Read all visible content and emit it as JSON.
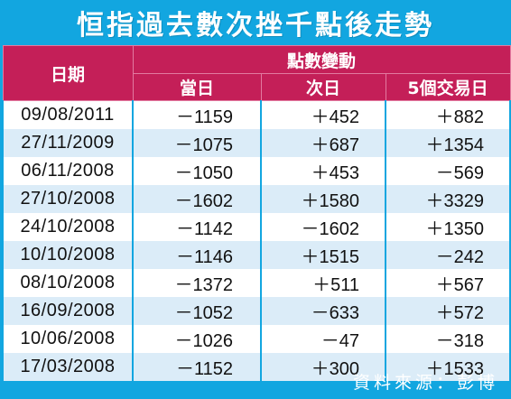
{
  "title": "恒指過去數次挫千點後走勢",
  "header": {
    "date_label": "日期",
    "group_label": "點數變動",
    "columns": [
      "當日",
      "次日",
      "5個交易日"
    ]
  },
  "rows": [
    {
      "date": "09/08/2011",
      "same_day": "－1159",
      "next_day": "＋452",
      "five_day": "＋882"
    },
    {
      "date": "27/11/2009",
      "same_day": "－1075",
      "next_day": "＋687",
      "five_day": "＋1354"
    },
    {
      "date": "06/11/2008",
      "same_day": "－1050",
      "next_day": "＋453",
      "five_day": "－569"
    },
    {
      "date": "27/10/2008",
      "same_day": "－1602",
      "next_day": "＋1580",
      "five_day": "＋3329"
    },
    {
      "date": "24/10/2008",
      "same_day": "－1142",
      "next_day": "－1602",
      "five_day": "＋1350"
    },
    {
      "date": "10/10/2008",
      "same_day": "－1146",
      "next_day": "＋1515",
      "five_day": "－242"
    },
    {
      "date": "08/10/2008",
      "same_day": "－1372",
      "next_day": "＋511",
      "five_day": "＋567"
    },
    {
      "date": "16/09/2008",
      "same_day": "－1052",
      "next_day": "－633",
      "five_day": "＋572"
    },
    {
      "date": "10/06/2008",
      "same_day": "－1026",
      "next_day": "－47",
      "five_day": "－318"
    },
    {
      "date": "17/03/2008",
      "same_day": "－1152",
      "next_day": "＋300",
      "five_day": "＋1533"
    }
  ],
  "source": "資料來源：彭博",
  "colors": {
    "frame": "#12a6e0",
    "header": "#c41f58",
    "row_alt": "#dbecf8"
  }
}
